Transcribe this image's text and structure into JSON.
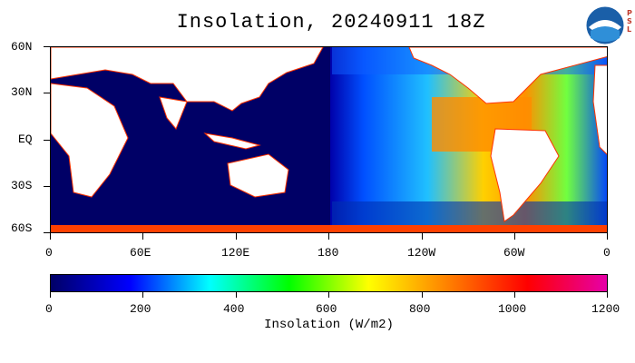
{
  "title": "Insolation, 20240911 18Z",
  "logo": {
    "name": "NOAA",
    "tag_lines": [
      "P",
      "S",
      "L"
    ]
  },
  "map": {
    "lat_labels": [
      "60N",
      "30N",
      "EQ",
      "30S",
      "60S"
    ],
    "lon_labels": [
      "0",
      "60E",
      "120E",
      "180",
      "120W",
      "60W",
      "0"
    ],
    "colors": {
      "land": "#ffffff",
      "night_ocean": "#000066",
      "coast": "#ff3300"
    }
  },
  "colorbar": {
    "ticks": [
      "0",
      "200",
      "400",
      "600",
      "800",
      "1000",
      "1200"
    ],
    "title": "Insolation (W/m2)",
    "colors": [
      "#000066",
      "#0000ff",
      "#00ffff",
      "#00ff00",
      "#ffff00",
      "#ff8000",
      "#ff0000",
      "#e600a8"
    ]
  }
}
